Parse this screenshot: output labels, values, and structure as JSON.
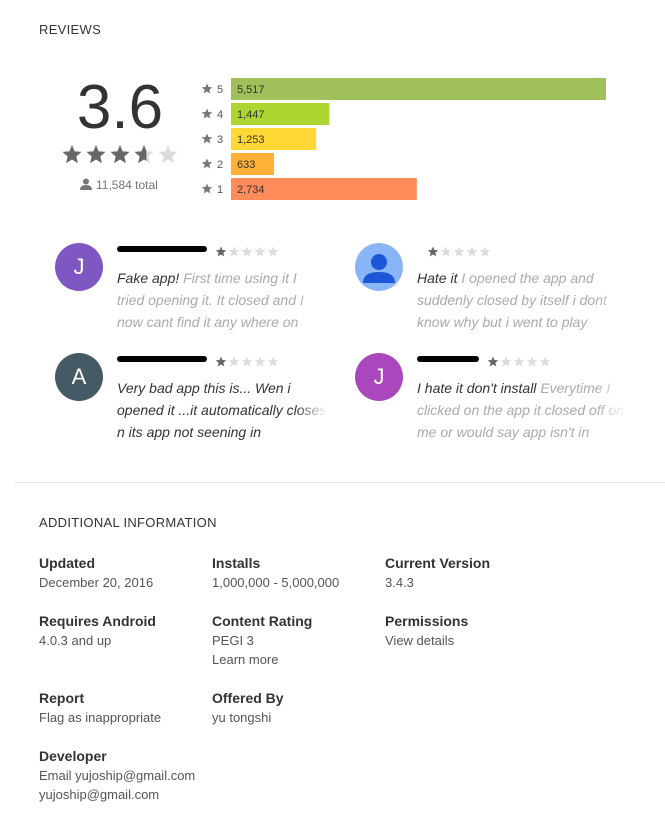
{
  "reviews": {
    "title": "REVIEWS",
    "rating": 3.6,
    "total": "11,584 total",
    "histogram": {
      "stars": [
        "5",
        "4",
        "3",
        "2",
        "1"
      ],
      "values": [
        5517,
        1447,
        1253,
        633,
        2734
      ],
      "value_labels": [
        "5,517",
        "1,447",
        "1,253",
        "633",
        "2,734"
      ],
      "colors": [
        "#9fc05a",
        "#add633",
        "#ffd835",
        "#ffb235",
        "#ff8c5a"
      ]
    },
    "items": [
      {
        "avatar": "J",
        "avatar_color": "#7e57c2",
        "stars": 1,
        "title": "Fake app!",
        "text": "First time using it I tried opening it. It closed and I now cant find it any where on"
      },
      {
        "avatar_color": "#8ab4f8",
        "stars": 1,
        "title": "Hate it",
        "text": "I opened the app and suddenly closed by itself i dont know why but i went to play"
      },
      {
        "avatar": "A",
        "avatar_color": "#455a64",
        "stars": 1,
        "title": "Very bad app this is... Wen i opened it ...it automatically closes n its app not seening in"
      },
      {
        "avatar": "J",
        "avatar_color": "#ab47bc",
        "stars": 1,
        "title": "I hate it don't install",
        "text": "Everytime I clicked on the app it closed off on me or would say app isn't in"
      }
    ]
  },
  "additional": {
    "title": "ADDITIONAL INFORMATION",
    "rows": [
      [
        {
          "label": "Updated",
          "lines": [
            "December 20, 2016"
          ]
        },
        {
          "label": "Installs",
          "lines": [
            "1,000,000 - 5,000,000"
          ]
        },
        {
          "label": "Current Version",
          "lines": [
            "3.4.3"
          ]
        }
      ],
      [
        {
          "label": "Requires Android",
          "lines": [
            "4.0.3 and up"
          ]
        },
        {
          "label": "Content Rating",
          "lines": [
            "PEGI 3",
            "Learn more"
          ]
        },
        {
          "label": "Permissions",
          "lines": [
            "View details"
          ]
        }
      ],
      [
        {
          "label": "Report",
          "lines": [
            "Flag as inappropriate"
          ]
        },
        {
          "label": "Offered By",
          "lines": [
            "yu tongshi"
          ]
        }
      ],
      [
        {
          "label": "Developer",
          "lines": [
            "Email yujoship@gmail.com",
            "yujoship@gmail.com"
          ]
        }
      ]
    ]
  }
}
